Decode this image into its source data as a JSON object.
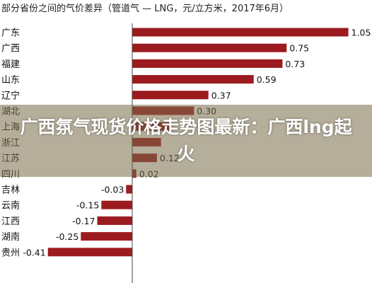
{
  "overlay_title": "广西氛气现货价格走势图最新：广西lng起火",
  "colors": {
    "bar": "#9b1b1f",
    "axis": "#444444"
  },
  "chart_data": {
    "type": "bar",
    "orientation": "horizontal",
    "title": "部分省份之间的气价差异（管道气 — LNG，元/立方米，2017年6月）",
    "categories": [
      "广东",
      "广西",
      "福建",
      "山东",
      "辽宁",
      "湖北",
      "上海",
      "浙江",
      "江苏",
      "四川",
      "吉林",
      "云南",
      "江西",
      "湖南",
      "贵州"
    ],
    "values": [
      1.05,
      0.75,
      0.73,
      0.59,
      0.37,
      0.3,
      0.18,
      0.14,
      0.12,
      0.02,
      -0.03,
      -0.15,
      -0.17,
      -0.25,
      -0.41
    ],
    "value_labels": [
      "1.05",
      "0.75",
      "0.73",
      "0.59",
      "0.37",
      "0.30",
      "",
      "",
      "0.12",
      "0.02",
      "-0.03",
      "-0.15",
      "-0.17",
      "-0.25",
      "-0.41"
    ],
    "grid": false,
    "legend": "none"
  }
}
